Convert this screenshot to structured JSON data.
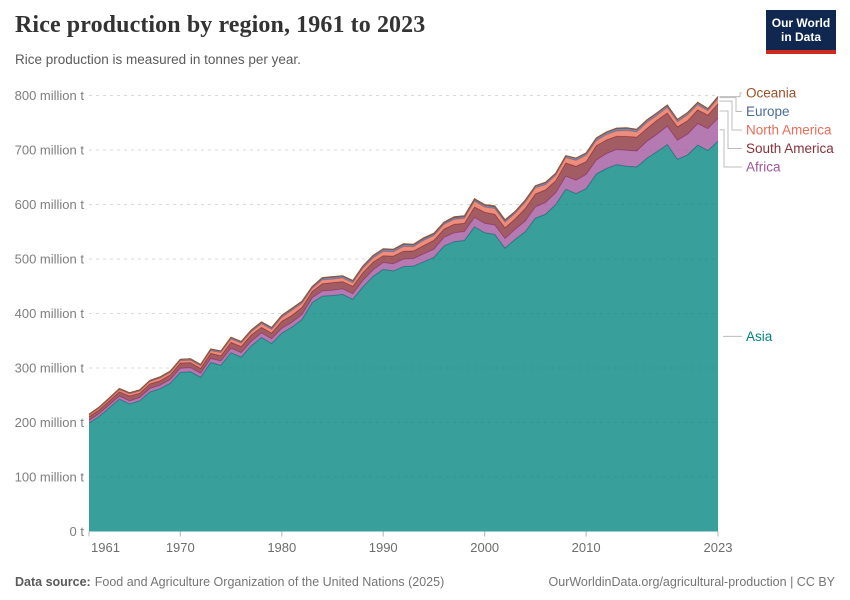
{
  "header": {
    "title": "Rice production by region, 1961 to 2023",
    "subtitle": "Rice production is measured in tonnes per year.",
    "logo": {
      "line1": "Our World",
      "line2": "in Data"
    }
  },
  "footer": {
    "datasource_label": "Data source:",
    "datasource_text": "Food and Agriculture Organization of the United Nations (2025)",
    "link_text": "OurWorldinData.org/agricultural-production",
    "separator": " | ",
    "license_text": "CC BY"
  },
  "colors": {
    "background": "#ffffff",
    "logo_bg": "#102850",
    "logo_red": "#cc2b24",
    "grid": "#d9d9d9",
    "y_tick_text": "#7e7e7e",
    "x_tick_text": "#6d6d6d",
    "tick_mark": "#b3b3b3",
    "connector": "#bcbcbc",
    "title_text": "#333333",
    "subtitle_text": "#5b5b5b",
    "footer_text": "#757575"
  },
  "chart_data": {
    "type": "area",
    "stacked": true,
    "title": "Rice production by region, 1961 to 2023",
    "subtitle": "Rice production is measured in tonnes per year.",
    "xlabel": "",
    "ylabel": "",
    "unit": "million tonnes per year",
    "ylim": [
      0,
      800
    ],
    "grid": "horizontal-dashed",
    "legend_position": "right-edge-labels",
    "x_ticks": [
      1961,
      1970,
      1980,
      1990,
      2000,
      2010,
      2023
    ],
    "y_ticks": [
      {
        "value": 0,
        "label": "0 t"
      },
      {
        "value": 100,
        "label": "100 million t"
      },
      {
        "value": 200,
        "label": "200 million t"
      },
      {
        "value": 300,
        "label": "300 million t"
      },
      {
        "value": 400,
        "label": "400 million t"
      },
      {
        "value": 500,
        "label": "500 million t"
      },
      {
        "value": 600,
        "label": "600 million t"
      },
      {
        "value": 700,
        "label": "700 million t"
      },
      {
        "value": 800,
        "label": "800 million t"
      }
    ],
    "years": [
      1961,
      1962,
      1963,
      1964,
      1965,
      1966,
      1967,
      1968,
      1969,
      1970,
      1971,
      1972,
      1973,
      1974,
      1975,
      1976,
      1977,
      1978,
      1979,
      1980,
      1981,
      1982,
      1983,
      1984,
      1985,
      1986,
      1987,
      1988,
      1989,
      1990,
      1991,
      1992,
      1993,
      1994,
      1995,
      1996,
      1997,
      1998,
      1999,
      2000,
      2001,
      2002,
      2003,
      2004,
      2005,
      2006,
      2007,
      2008,
      2009,
      2010,
      2011,
      2012,
      2013,
      2014,
      2015,
      2016,
      2017,
      2018,
      2019,
      2020,
      2021,
      2022,
      2023
    ],
    "series": [
      {
        "name": "Asia",
        "color": "#00847E",
        "values": [
          199,
          211,
          227,
          243,
          234,
          240,
          256,
          262,
          272,
          292,
          293,
          283,
          310,
          305,
          328,
          320,
          341,
          356,
          345,
          364,
          375,
          389,
          420,
          432,
          433,
          435,
          426,
          449,
          468,
          481,
          478,
          486,
          487,
          495,
          503,
          524,
          532,
          534,
          559,
          548,
          545,
          520,
          536,
          550,
          575,
          582,
          600,
          628,
          620,
          629,
          656,
          666,
          673,
          670,
          669,
          685,
          697,
          710,
          683,
          691,
          709,
          699,
          715.9
        ]
      },
      {
        "name": "Africa",
        "color": "#A2559C",
        "values": [
          4.9,
          5.1,
          5.3,
          5.5,
          5.6,
          5.8,
          6.3,
          6.5,
          6.8,
          7.4,
          7.6,
          7.2,
          7.5,
          7.9,
          8.1,
          8.2,
          7.9,
          8.3,
          8.5,
          8.6,
          8.9,
          9,
          8.7,
          9.4,
          9.8,
          10.2,
          10.2,
          11.5,
          12,
          12.6,
          13.2,
          13.8,
          13.9,
          14.5,
          14.9,
          15.9,
          16,
          16.5,
          17.4,
          17.4,
          17.3,
          17.7,
          18.5,
          19.5,
          20.5,
          21.7,
          21.2,
          24,
          24.6,
          26,
          25.5,
          27.4,
          27.9,
          29.6,
          29.2,
          31,
          32,
          33.6,
          34.8,
          38,
          39.4,
          40.1,
          42.4
        ]
      },
      {
        "name": "South America",
        "color": "#883039",
        "values": [
          6.5,
          7.1,
          7.4,
          8,
          9.1,
          8,
          8.5,
          8.1,
          8.6,
          9.8,
          9.3,
          9,
          9.5,
          9.7,
          10.9,
          11.3,
          11.9,
          10.2,
          10.7,
          13,
          12.7,
          13.2,
          11.8,
          13.2,
          13.9,
          13.3,
          13.7,
          14.3,
          14.3,
          12.5,
          14.1,
          14.5,
          14,
          15.2,
          16.5,
          15.1,
          15.6,
          14.8,
          19,
          20.5,
          19.8,
          19.5,
          19.1,
          23.2,
          24,
          23,
          22.4,
          24.2,
          25.5,
          23.5,
          26.4,
          25,
          24.5,
          25.2,
          25.4,
          23.7,
          25.6,
          24.3,
          24.6,
          24.8,
          25.1,
          24.9,
          26.6
        ]
      },
      {
        "name": "North America",
        "color": "#E56E5A",
        "values": [
          2.8,
          3,
          3.3,
          3.5,
          3.7,
          3.9,
          4.2,
          4.6,
          4.3,
          4.2,
          4.4,
          4.5,
          4.8,
          5.6,
          6.3,
          6,
          5.7,
          6.7,
          6.5,
          7.3,
          8.9,
          7.5,
          5.4,
          7.1,
          6.5,
          6.6,
          6.4,
          7.9,
          7.7,
          7.9,
          8.1,
          8.7,
          7.8,
          9.6,
          8.6,
          8.5,
          9,
          9.2,
          10.4,
          9.6,
          10.5,
          10.3,
          10,
          11.2,
          11.2,
          9.7,
          9.9,
          9.7,
          10.8,
          11.6,
          9.2,
          9.8,
          9.5,
          11,
          9.6,
          11,
          9,
          10.1,
          9.2,
          10.9,
          9.5,
          8.1,
          9.5
        ]
      },
      {
        "name": "Europe",
        "color": "#4C6A9C",
        "values": [
          1.8,
          1.9,
          2,
          2.1,
          2,
          1.9,
          2.1,
          2.2,
          2.3,
          2.4,
          2.5,
          2.6,
          2.7,
          2.8,
          2.9,
          2.7,
          2.8,
          3,
          3.1,
          3.2,
          3.3,
          3.4,
          3.3,
          3.5,
          3.6,
          3.7,
          3.6,
          3.7,
          3.8,
          3.9,
          3.8,
          3.7,
          3.5,
          3.4,
          3.3,
          3.4,
          3.4,
          3.4,
          3.4,
          3.3,
          3.3,
          3.4,
          3.4,
          3.5,
          3.5,
          3.5,
          3.6,
          3.6,
          4.1,
          4.2,
          4.4,
          4.2,
          4.1,
          4.1,
          4.2,
          4.2,
          4.2,
          4,
          4.1,
          4.1,
          4,
          3.4,
          3.4
        ]
      },
      {
        "name": "Oceania",
        "color": "#9A5129",
        "values": [
          0.2,
          0.2,
          0.2,
          0.2,
          0.2,
          0.2,
          0.2,
          0.2,
          0.25,
          0.2,
          0.3,
          0.3,
          0.3,
          0.4,
          0.4,
          0.4,
          0.6,
          0.5,
          0.7,
          0.6,
          0.7,
          0.7,
          0.5,
          0.6,
          0.9,
          0.6,
          0.7,
          0.8,
          0.8,
          0.9,
          0.7,
          1.1,
          1,
          1.3,
          1.1,
          1,
          1.4,
          1.3,
          1.4,
          1.1,
          1.8,
          1.3,
          0.4,
          0.6,
          0.3,
          1,
          0.2,
          0.02,
          0.07,
          0.2,
          0.7,
          0.9,
          1.2,
          0.8,
          0.7,
          0.6,
          0.8,
          0.6,
          0.5,
          0.06,
          0.5,
          0.5,
          0.5
        ]
      }
    ]
  }
}
